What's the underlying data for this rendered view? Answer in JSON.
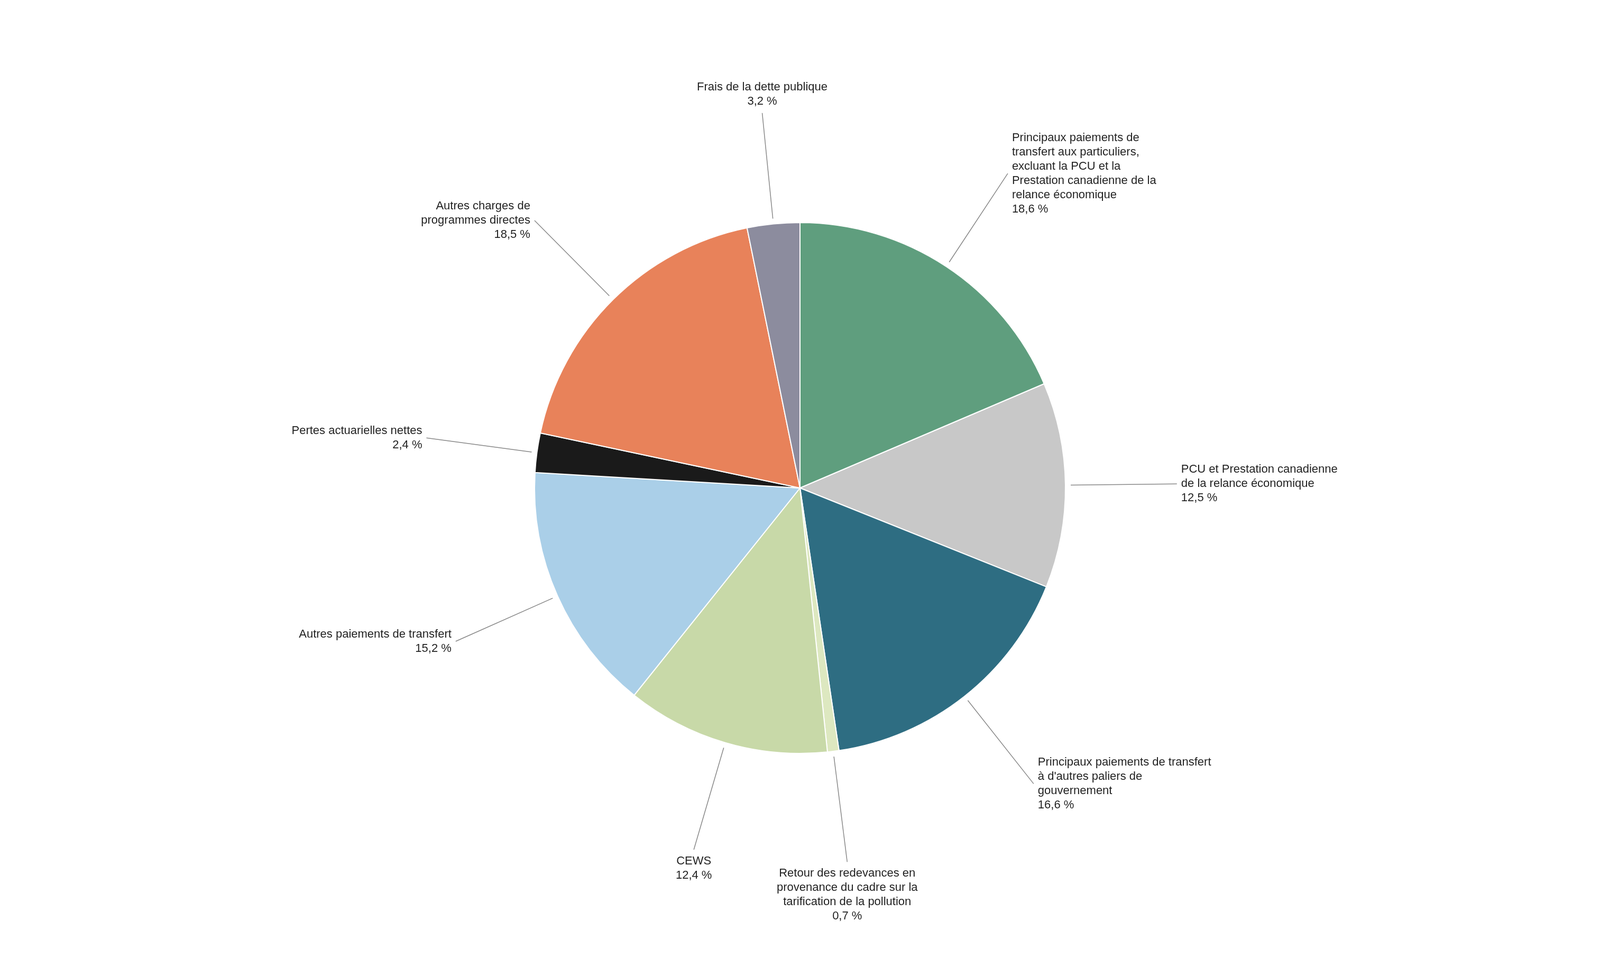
{
  "chart_data": {
    "type": "pie",
    "categories": [
      "Principaux paiements de\ntransfert aux particuliers,\nexcluant la PCU et la\nPrestation canadienne de la\nrelance économique",
      "PCU et Prestation canadienne\nde la relance économique",
      "Principaux paiements de transfert\nà d'autres paliers de\ngouvernement",
      "Retour des redevances en\nprovenance du cadre sur la\ntarification de la pollution",
      "CEWS",
      "Autres paiements de transfert",
      "Pertes actuarielles nettes",
      "Autres charges de\nprogrammes directes",
      "Frais de la dette publique"
    ],
    "values": [
      18.6,
      12.5,
      16.6,
      0.7,
      12.4,
      15.2,
      2.4,
      18.5,
      3.2
    ],
    "value_labels": [
      "18,6 %",
      "12,5 %",
      "16,6 %",
      "0,7 %",
      "12,4 %",
      "15,2 %",
      "2,4 %",
      "18,5 %",
      "3,2 %"
    ],
    "colors": [
      "#5f9e7e",
      "#c8c8c8",
      "#2e6d82",
      "#dde8c0",
      "#c8d9a8",
      "#aacfe8",
      "#1a1a1a",
      "#e8825a",
      "#8c8c9e"
    ],
    "data_labels": true,
    "legend": false
  }
}
